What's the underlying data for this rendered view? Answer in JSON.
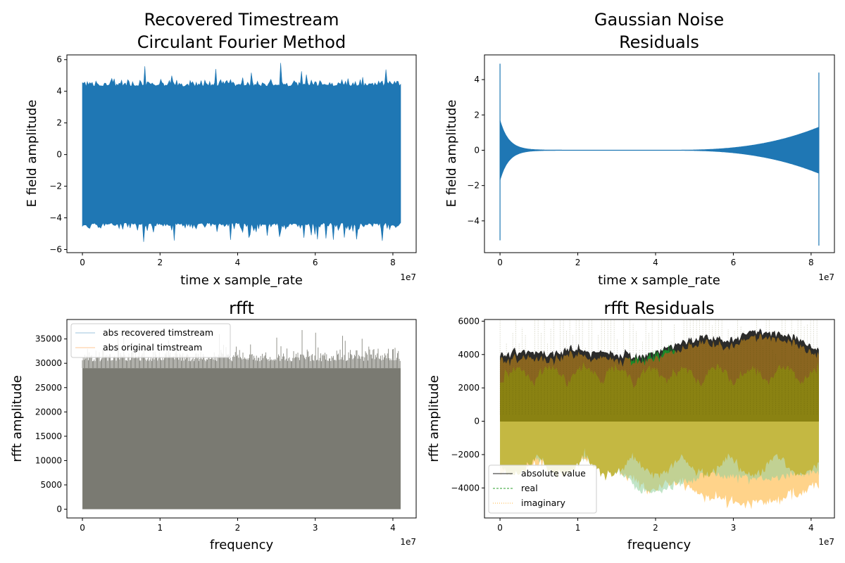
{
  "chart_data": [
    {
      "id": "tl",
      "type": "line",
      "title_lines": [
        "Recovered Timestream",
        "Circulant Fourier Method"
      ],
      "xlabel": "time x sample_rate",
      "ylabel": "E field amplitude",
      "x_offset_text": "1e7",
      "xlim": [
        -0.4,
        8.6
      ],
      "ylim": [
        -6.2,
        6.3
      ],
      "xticks": [
        0,
        2,
        4,
        6,
        8
      ],
      "yticks": [
        -6,
        -4,
        -2,
        0,
        2,
        4,
        6
      ],
      "series": [
        {
          "color": "#1f77b4",
          "x_range": [
            0,
            8.2
          ],
          "envelope": {
            "upper": 4.3,
            "lower": -4.3,
            "spike_max": 5.8,
            "spike_min": -5.6
          }
        }
      ]
    },
    {
      "id": "tr",
      "type": "line",
      "title_lines": [
        "Gaussian Noise",
        "Residuals"
      ],
      "xlabel": "time x sample_rate",
      "ylabel": "E field amplitude",
      "x_offset_text": "1e7",
      "xlim": [
        -0.4,
        8.6
      ],
      "ylim": [
        -5.8,
        5.4
      ],
      "xticks": [
        0,
        2,
        4,
        6,
        8
      ],
      "yticks": [
        -4,
        -2,
        0,
        2,
        4
      ],
      "series": [
        {
          "color": "#1f77b4",
          "x_range": [
            0,
            8.2
          ],
          "spikes": [
            {
              "x": 0.0,
              "max": 4.9,
              "min": -5.1
            },
            {
              "x": 8.2,
              "max": 4.4,
              "min": -5.4
            }
          ],
          "edge_amplitude_left": 1.7,
          "edge_amplitude_right": 1.3
        }
      ]
    },
    {
      "id": "bl",
      "type": "line",
      "title_lines": [
        "rfft"
      ],
      "xlabel": "frequency",
      "ylabel": "rfft amplitude",
      "x_offset_text": "1e7",
      "xlim": [
        -0.2,
        4.3
      ],
      "ylim": [
        -1800,
        39000
      ],
      "xticks": [
        0,
        1,
        2,
        3,
        4
      ],
      "yticks": [
        0,
        5000,
        10000,
        15000,
        20000,
        25000,
        30000,
        35000
      ],
      "legend_position": "upper-left",
      "series": [
        {
          "name": "abs recovered timstream",
          "color": "#1f77b4",
          "x_range": [
            0,
            4.1
          ],
          "base": 29000,
          "spike_max": 37200
        },
        {
          "name": "abs original timstream",
          "color": "#ff7f0e",
          "x_range": [
            0,
            4.1
          ],
          "base": 29000,
          "spike_max": 37200
        }
      ],
      "fill_color": "#7a7a72"
    },
    {
      "id": "br",
      "type": "line",
      "title_lines": [
        "rfft Residuals"
      ],
      "xlabel": "frequency",
      "ylabel": "rfft amplitude",
      "x_offset_text": "1e7",
      "xlim": [
        -0.2,
        4.3
      ],
      "ylim": [
        -5800,
        6100
      ],
      "xticks": [
        0,
        1,
        2,
        3,
        4
      ],
      "yticks": [
        -4000,
        -2000,
        0,
        2000,
        4000,
        6000
      ],
      "legend_position": "lower-left",
      "series": [
        {
          "name": "absolute value",
          "color": "#222222",
          "style": "solid"
        },
        {
          "name": "real",
          "color": "#2ca02c",
          "style": "dashed"
        },
        {
          "name": "imaginary",
          "color": "#ffb03b",
          "style": "dotted"
        }
      ],
      "abs_envelope": [
        [
          0,
          4000
        ],
        [
          0.3,
          4200
        ],
        [
          0.6,
          4000
        ],
        [
          1.0,
          4300
        ],
        [
          1.4,
          4100
        ],
        [
          1.8,
          3800
        ],
        [
          2.0,
          4200
        ],
        [
          2.3,
          4600
        ],
        [
          2.6,
          5100
        ],
        [
          2.9,
          4800
        ],
        [
          3.2,
          5300
        ],
        [
          3.5,
          5400
        ],
        [
          3.8,
          5000
        ],
        [
          4.1,
          4200
        ]
      ],
      "imag_low_envelope": [
        [
          0,
          -3000
        ],
        [
          0.3,
          -2600
        ],
        [
          0.6,
          -2400
        ],
        [
          1.0,
          -2200
        ],
        [
          1.4,
          -2600
        ],
        [
          1.8,
          -3800
        ],
        [
          2.0,
          -4100
        ],
        [
          2.3,
          -3600
        ],
        [
          2.6,
          -4400
        ],
        [
          3.0,
          -4800
        ],
        [
          3.4,
          -5000
        ],
        [
          3.8,
          -4400
        ],
        [
          4.1,
          -3800
        ]
      ],
      "real_low_envelope": [
        [
          0,
          -2500
        ],
        [
          1.0,
          -2000
        ],
        [
          1.6,
          -3200
        ],
        [
          1.8,
          -4300
        ],
        [
          2.2,
          -4000
        ],
        [
          2.6,
          -3200
        ],
        [
          3.4,
          -3500
        ],
        [
          4.1,
          -3000
        ]
      ]
    }
  ]
}
